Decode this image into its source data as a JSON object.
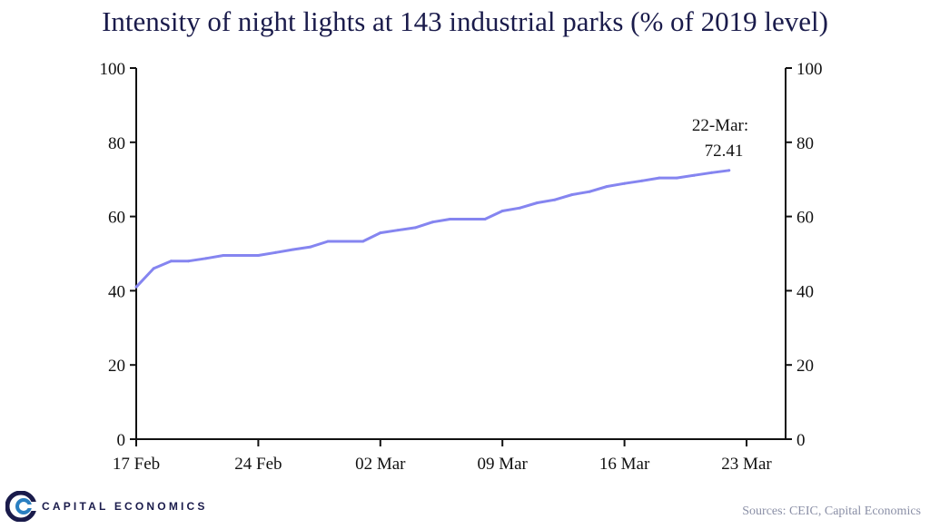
{
  "chart_data": {
    "type": "line",
    "title": "Intensity of night lights at 143 industrial parks (% of 2019 level)",
    "xlabel": "",
    "ylabel": "",
    "x": [
      "17 Feb",
      "18 Feb",
      "19 Feb",
      "20 Feb",
      "21 Feb",
      "22 Feb",
      "23 Feb",
      "24 Feb",
      "25 Feb",
      "26 Feb",
      "27 Feb",
      "28 Feb",
      "29 Feb",
      "01 Mar",
      "02 Mar",
      "03 Mar",
      "04 Mar",
      "05 Mar",
      "06 Mar",
      "07 Mar",
      "08 Mar",
      "09 Mar",
      "10 Mar",
      "11 Mar",
      "12 Mar",
      "13 Mar",
      "14 Mar",
      "15 Mar",
      "16 Mar",
      "17 Mar",
      "18 Mar",
      "19 Mar",
      "20 Mar",
      "21 Mar",
      "22 Mar"
    ],
    "x_ticks": [
      "17 Feb",
      "24 Feb",
      "02 Mar",
      "09 Mar",
      "16 Mar",
      "23 Mar"
    ],
    "y_ticks": [
      0,
      20,
      40,
      60,
      80,
      100
    ],
    "ylim": [
      0,
      100
    ],
    "series": [
      {
        "name": "",
        "color": "#8585f0",
        "values": [
          41,
          46,
          48,
          48,
          48.7,
          49.5,
          49.5,
          49.5,
          50.3,
          51.1,
          51.8,
          53.3,
          53.3,
          53.3,
          55.6,
          56.3,
          57,
          58.5,
          59.3,
          59.3,
          59.3,
          61.5,
          62.3,
          63.7,
          64.5,
          65.9,
          66.7,
          68.1,
          68.9,
          69.6,
          70.4,
          70.4,
          71.1,
          71.8,
          72.41
        ]
      }
    ],
    "annotation": {
      "line1": "22-Mar:",
      "line2": "72.41"
    },
    "grid": false,
    "right_axis": true
  },
  "footer": {
    "logo_text": "CAPITAL ECONOMICS",
    "source": "Sources: CEIC, Capital Economics"
  }
}
